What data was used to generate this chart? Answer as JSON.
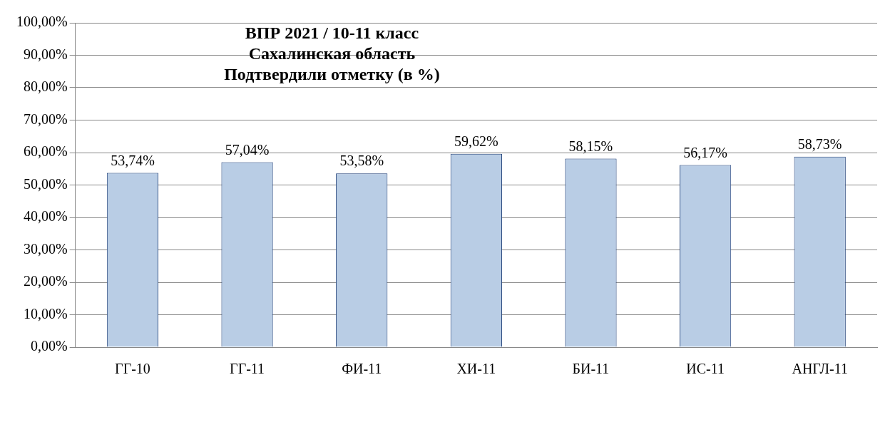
{
  "chart_data": {
    "type": "bar",
    "title": "ВПР 2021 / 10-11 класс\nСахалинская область\nПодтвердили отметку (в %)",
    "categories": [
      "ГГ-10",
      "ГГ-11",
      "ФИ-11",
      "ХИ-11",
      "БИ-11",
      "ИС-11",
      "АНГЛ-11"
    ],
    "values": [
      53.74,
      57.04,
      53.58,
      59.62,
      58.15,
      56.17,
      58.73
    ],
    "value_labels": [
      "53,74%",
      "57,04%",
      "53,58%",
      "59,62%",
      "58,15%",
      "56,17%",
      "58,73%"
    ],
    "color": "#b9cde5",
    "ylim": [
      0,
      100
    ],
    "yticks": [
      {
        "value": 0,
        "label": "0,00%"
      },
      {
        "value": 10,
        "label": "10,00%"
      },
      {
        "value": 20,
        "label": "20,00%"
      },
      {
        "value": 30,
        "label": "30,00%"
      },
      {
        "value": 40,
        "label": "40,00%"
      },
      {
        "value": 50,
        "label": "50,00%"
      },
      {
        "value": 60,
        "label": "60,00%"
      },
      {
        "value": 70,
        "label": "70,00%"
      },
      {
        "value": 80,
        "label": "80,00%"
      },
      {
        "value": 90,
        "label": "90,00%"
      },
      {
        "value": 100,
        "label": "100,00%"
      }
    ],
    "grid": "y",
    "legend": false
  }
}
